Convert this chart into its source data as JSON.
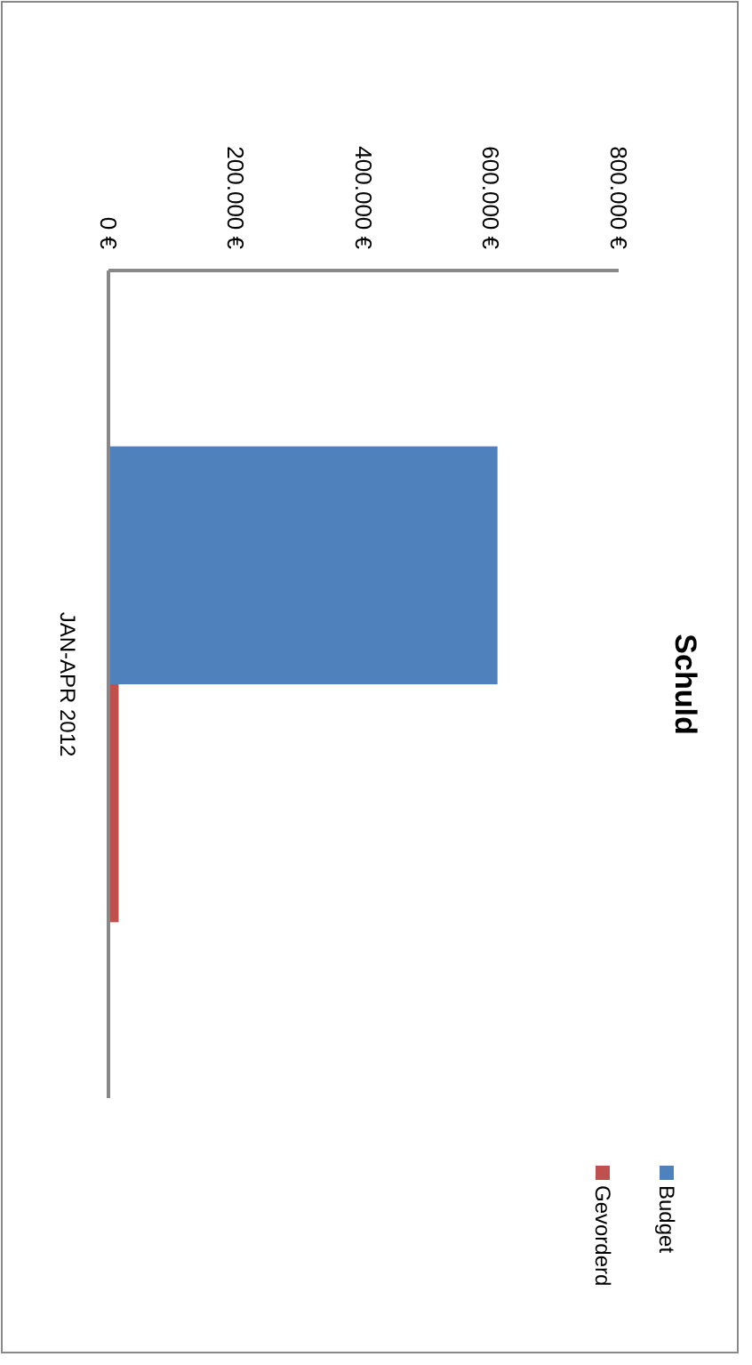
{
  "chart_data": {
    "type": "bar",
    "title": "Schuld",
    "orientation": "horizontal",
    "categories": [
      "JAN-APR 2012"
    ],
    "series": [
      {
        "name": "Budget",
        "color": "#4f81bd",
        "values": [
          610000
        ]
      },
      {
        "name": "Gevorderd",
        "color": "#c0504d",
        "values": [
          16000
        ]
      }
    ],
    "xlim": [
      0,
      800000
    ],
    "xticks": [
      {
        "value": 0,
        "label": "0 €"
      },
      {
        "value": 200000,
        "label": "200.000 €"
      },
      {
        "value": 400000,
        "label": "400.000 €"
      },
      {
        "value": 600000,
        "label": "600.000 €"
      },
      {
        "value": 800000,
        "label": "800.000 €"
      }
    ],
    "legend": "bottom"
  }
}
